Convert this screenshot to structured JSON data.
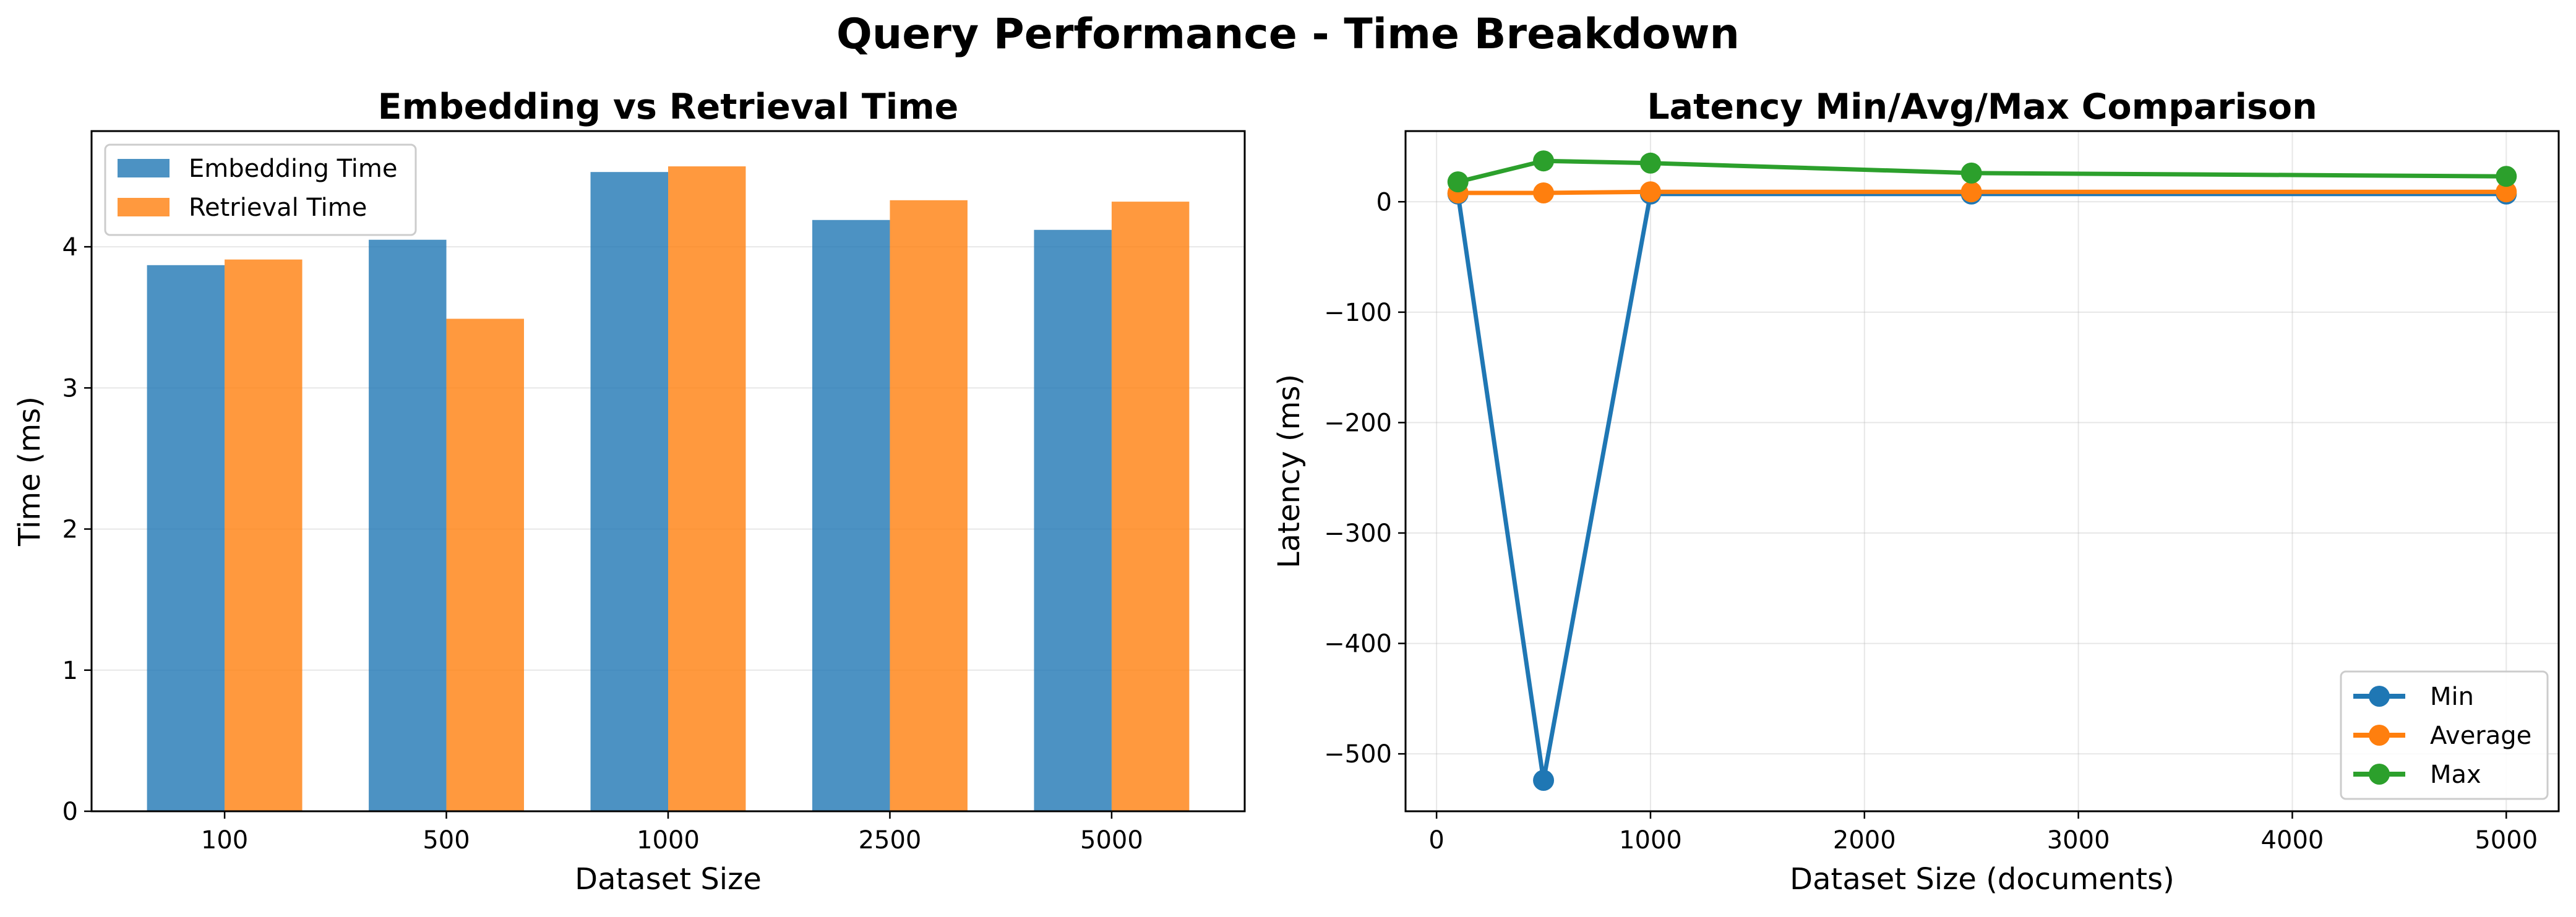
{
  "figure_title": "Query Performance - Time Breakdown",
  "chart_data": [
    {
      "type": "bar",
      "title": "Embedding vs Retrieval Time",
      "xlabel": "Dataset Size",
      "ylabel": "Time (ms)",
      "categories": [
        "100",
        "500",
        "1000",
        "2500",
        "5000"
      ],
      "series": [
        {
          "name": "Embedding Time",
          "color": "#1f77b4",
          "values": [
            3.87,
            4.05,
            4.53,
            4.19,
            4.12
          ]
        },
        {
          "name": "Retrieval Time",
          "color": "#ff7f0e",
          "values": [
            3.91,
            3.49,
            4.57,
            4.33,
            4.32
          ]
        }
      ],
      "ylim": [
        0,
        4.82
      ],
      "yticks": [
        0,
        1,
        2,
        3,
        4
      ],
      "grid": "y",
      "legend_position": "upper-left"
    },
    {
      "type": "line",
      "title": "Latency Min/Avg/Max Comparison",
      "xlabel": "Dataset Size (documents)",
      "ylabel": "Latency (ms)",
      "x": [
        100,
        500,
        1000,
        2500,
        5000
      ],
      "series": [
        {
          "name": "Min",
          "color": "#1f77b4",
          "values": [
            7,
            -524,
            7,
            7,
            7
          ]
        },
        {
          "name": "Average",
          "color": "#ff7f0e",
          "values": [
            8,
            8,
            9,
            9,
            9
          ]
        },
        {
          "name": "Max",
          "color": "#2ca02c",
          "values": [
            18,
            37,
            35,
            26,
            23
          ]
        }
      ],
      "xlim": [
        -145,
        5245
      ],
      "ylim": [
        -552,
        64
      ],
      "xticks": [
        0,
        1000,
        2000,
        3000,
        4000,
        5000
      ],
      "yticks": [
        0,
        -100,
        -200,
        -300,
        -400,
        -500
      ],
      "grid": "both",
      "legend_position": "lower-right"
    }
  ]
}
